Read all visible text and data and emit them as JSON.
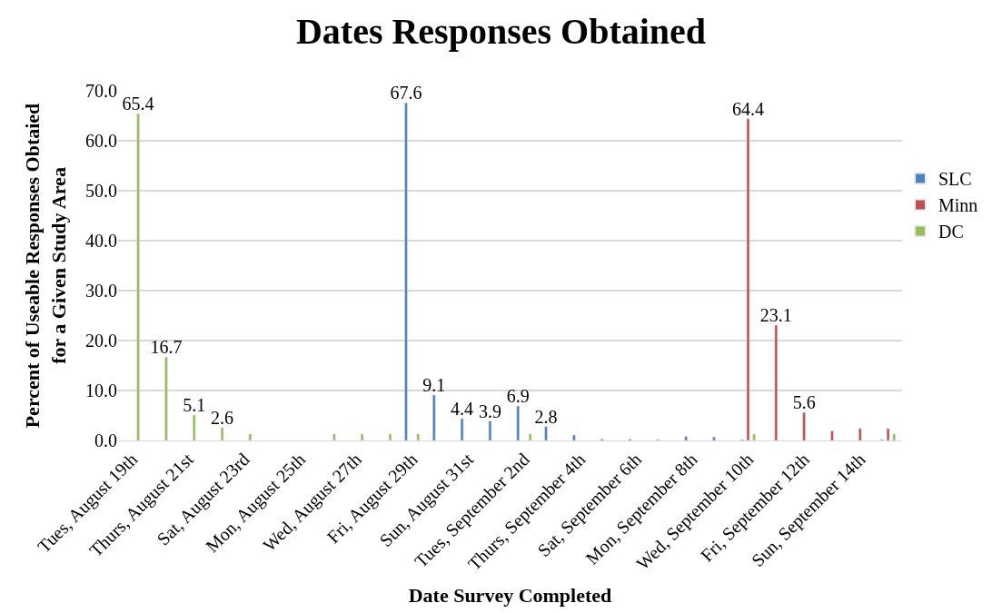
{
  "chart_data": {
    "type": "bar",
    "title": "Dates Responses Obtained",
    "xlabel": "Date Survey Completed",
    "ylabel": "Percent of Useable Responses Obtaied\nfor a Given Study Area",
    "categories": [
      "Tues, August 19th",
      null,
      "Thurs, August 21st",
      null,
      "Sat, August 23rd",
      null,
      "Mon, August 25th",
      null,
      "Wed, August 27th",
      null,
      "Fri, August 29th",
      null,
      "Sun, August 31st",
      null,
      "Tues, September 2nd",
      null,
      "Thurs, September 4th",
      null,
      "Sat, September 6th",
      null,
      "Mon, September 8th",
      null,
      "Wed, September 10th",
      null,
      "Fri, September 12th",
      null,
      "Sun, September 14th",
      null
    ],
    "series": [
      {
        "name": "SLC",
        "color": "#4f81bd",
        "values": [
          null,
          null,
          null,
          null,
          null,
          null,
          null,
          null,
          null,
          null,
          67.6,
          9.1,
          4.4,
          3.9,
          6.9,
          2.8,
          1.1,
          0.3,
          0.3,
          0.2,
          0.8,
          0.7,
          0.2,
          null,
          null,
          null,
          null,
          0.2
        ],
        "value_labels": [
          null,
          null,
          null,
          null,
          null,
          null,
          null,
          null,
          null,
          null,
          "67.6",
          "9.1",
          "4.4",
          "3.9",
          "6.9",
          "2.8",
          null,
          null,
          null,
          null,
          null,
          null,
          null,
          null,
          null,
          null,
          null,
          null
        ]
      },
      {
        "name": "Minn",
        "color": "#c0504d",
        "values": [
          null,
          null,
          null,
          null,
          null,
          null,
          null,
          null,
          null,
          null,
          null,
          null,
          null,
          null,
          null,
          null,
          null,
          null,
          null,
          null,
          null,
          null,
          64.4,
          23.1,
          5.6,
          1.9,
          2.4,
          2.4
        ],
        "value_labels": [
          null,
          null,
          null,
          null,
          null,
          null,
          null,
          null,
          null,
          null,
          null,
          null,
          null,
          null,
          null,
          null,
          null,
          null,
          null,
          null,
          null,
          null,
          "64.4",
          "23.1",
          "5.6",
          null,
          null,
          null
        ]
      },
      {
        "name": "DC",
        "color": "#9bbb59",
        "values": [
          65.4,
          16.7,
          5.1,
          2.6,
          1.3,
          null,
          null,
          1.3,
          1.3,
          1.3,
          1.3,
          null,
          null,
          null,
          1.3,
          null,
          null,
          null,
          null,
          null,
          null,
          null,
          1.3,
          null,
          null,
          null,
          null,
          1.3
        ],
        "value_labels": [
          "65.4",
          "16.7",
          "5.1",
          "2.6",
          null,
          null,
          null,
          null,
          null,
          null,
          null,
          null,
          null,
          null,
          null,
          null,
          null,
          null,
          null,
          null,
          null,
          null,
          null,
          null,
          null,
          null,
          null,
          null
        ]
      }
    ],
    "ylim": [
      0,
      70
    ],
    "yticks": [
      {
        "value": 0,
        "label": "0.0"
      },
      {
        "value": 10,
        "label": "10.0"
      },
      {
        "value": 20,
        "label": "20.0"
      },
      {
        "value": 30,
        "label": "30.0"
      },
      {
        "value": 40,
        "label": "40.0"
      },
      {
        "value": 50,
        "label": "50.0"
      },
      {
        "value": 60,
        "label": "60.0"
      },
      {
        "value": 70,
        "label": "70.0"
      }
    ],
    "grid": "y",
    "legend": "right"
  }
}
